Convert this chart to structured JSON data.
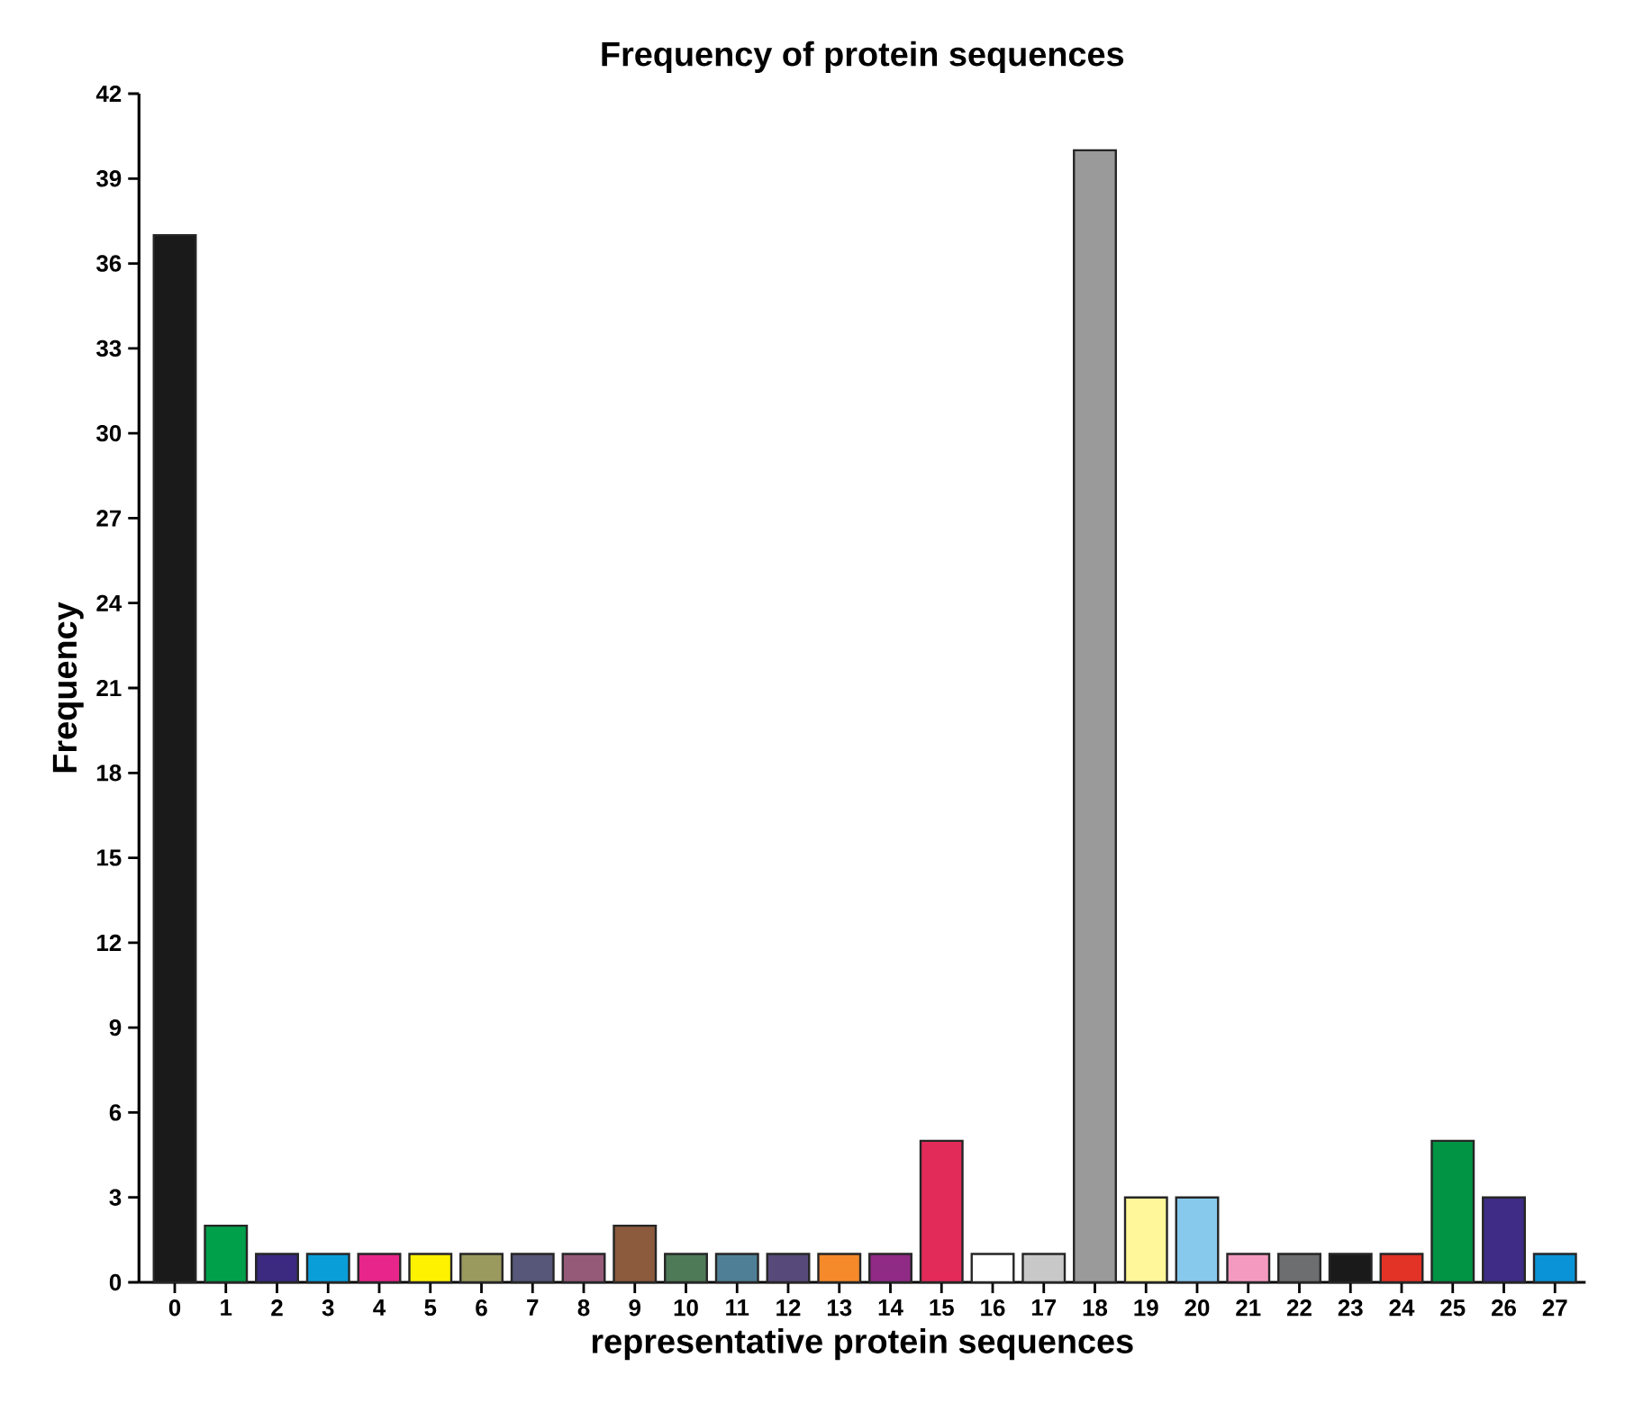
{
  "chart_data": {
    "type": "bar",
    "title": "Frequency of protein sequences",
    "xlabel": "representative protein sequences",
    "ylabel": "Frequency",
    "categories": [
      "0",
      "1",
      "2",
      "3",
      "4",
      "5",
      "6",
      "7",
      "8",
      "9",
      "10",
      "11",
      "12",
      "13",
      "14",
      "15",
      "16",
      "17",
      "18",
      "19",
      "20",
      "21",
      "22",
      "23",
      "24",
      "25",
      "26",
      "27"
    ],
    "values": [
      37,
      2,
      1,
      1,
      1,
      1,
      1,
      1,
      1,
      2,
      1,
      1,
      1,
      1,
      1,
      5,
      1,
      1,
      40,
      3,
      3,
      1,
      1,
      1,
      1,
      5,
      3,
      1
    ],
    "colors": [
      "#1a1a1a",
      "#00a04b",
      "#3b2a7f",
      "#0a9ed9",
      "#e8258a",
      "#fff200",
      "#9a9a5e",
      "#575779",
      "#955a78",
      "#8c5a3c",
      "#4f7a58",
      "#4f7f96",
      "#574a7a",
      "#f58a2a",
      "#8f2a85",
      "#e32b5a",
      "#ffffff",
      "#c8c8c8",
      "#9a9a9a",
      "#fff799",
      "#87c9ec",
      "#f49ac1",
      "#6d6e70",
      "#1a1a1a",
      "#e33226",
      "#009444",
      "#3f2c86",
      "#0a93d6"
    ],
    "ylim": [
      0,
      42
    ],
    "yticks": [
      0,
      3,
      6,
      9,
      12,
      15,
      18,
      21,
      24,
      27,
      30,
      33,
      36,
      39,
      42
    ]
  }
}
